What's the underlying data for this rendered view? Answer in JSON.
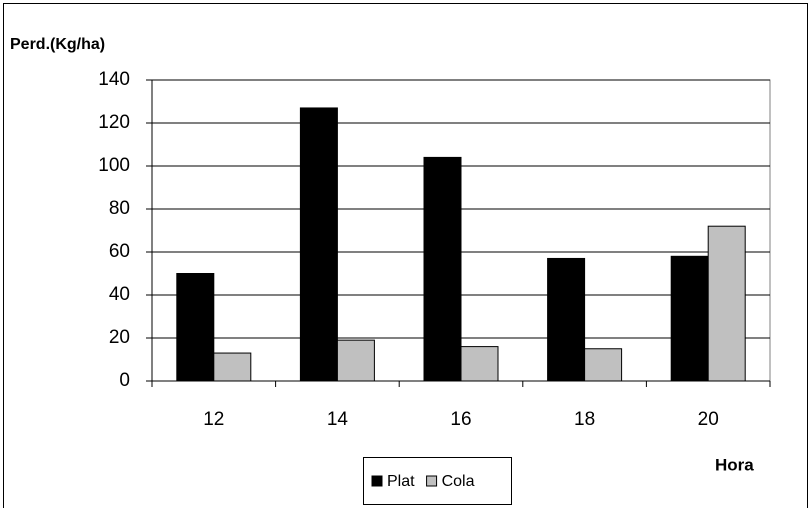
{
  "chart_data": {
    "type": "bar",
    "y_label": "Perd.(Kg/ha)",
    "x_label": "Hora",
    "categories": [
      "12",
      "14",
      "16",
      "18",
      "20"
    ],
    "series": [
      {
        "name": "Plat",
        "color": "#000000",
        "values": [
          50,
          127,
          104,
          57,
          58
        ]
      },
      {
        "name": "Cola",
        "color": "#c0c0c0",
        "values": [
          13,
          19,
          16,
          15,
          72
        ]
      }
    ],
    "ylim": [
      0,
      140
    ],
    "yticks": [
      0,
      20,
      40,
      60,
      80,
      100,
      120,
      140
    ],
    "grid": true,
    "legend": "bottom"
  }
}
